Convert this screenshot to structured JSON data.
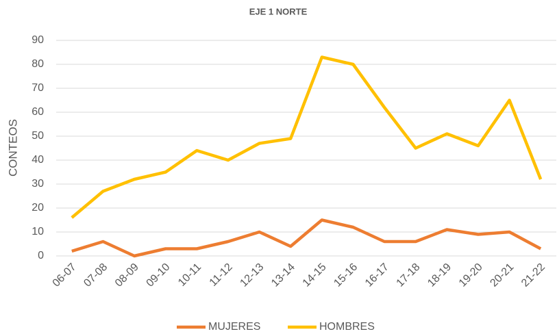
{
  "chart_data": {
    "type": "line",
    "title": "EJE 1 NORTE",
    "y_label": "CONTEOS",
    "categories": [
      "06-07",
      "07-08",
      "08-09",
      "09-10",
      "10-11",
      "11-12",
      "12-13",
      "13-14",
      "14-15",
      "15-16",
      "16-17",
      "17-18",
      "18-19",
      "19-20",
      "20-21",
      "21-22"
    ],
    "series": [
      {
        "name": "MUJERES",
        "color": "#ed7d31",
        "values": [
          2,
          6,
          0,
          3,
          3,
          6,
          10,
          4,
          15,
          12,
          6,
          6,
          11,
          9,
          10,
          3
        ]
      },
      {
        "name": "HOMBRES",
        "color": "#ffc000",
        "values": [
          16,
          27,
          32,
          35,
          44,
          40,
          47,
          49,
          83,
          80,
          62,
          45,
          51,
          46,
          65,
          32
        ]
      }
    ],
    "ylim": [
      0,
      90
    ],
    "yticks": [
      0,
      10,
      20,
      30,
      40,
      50,
      60,
      70,
      80,
      90
    ],
    "grid": true,
    "legend": "bottom"
  }
}
